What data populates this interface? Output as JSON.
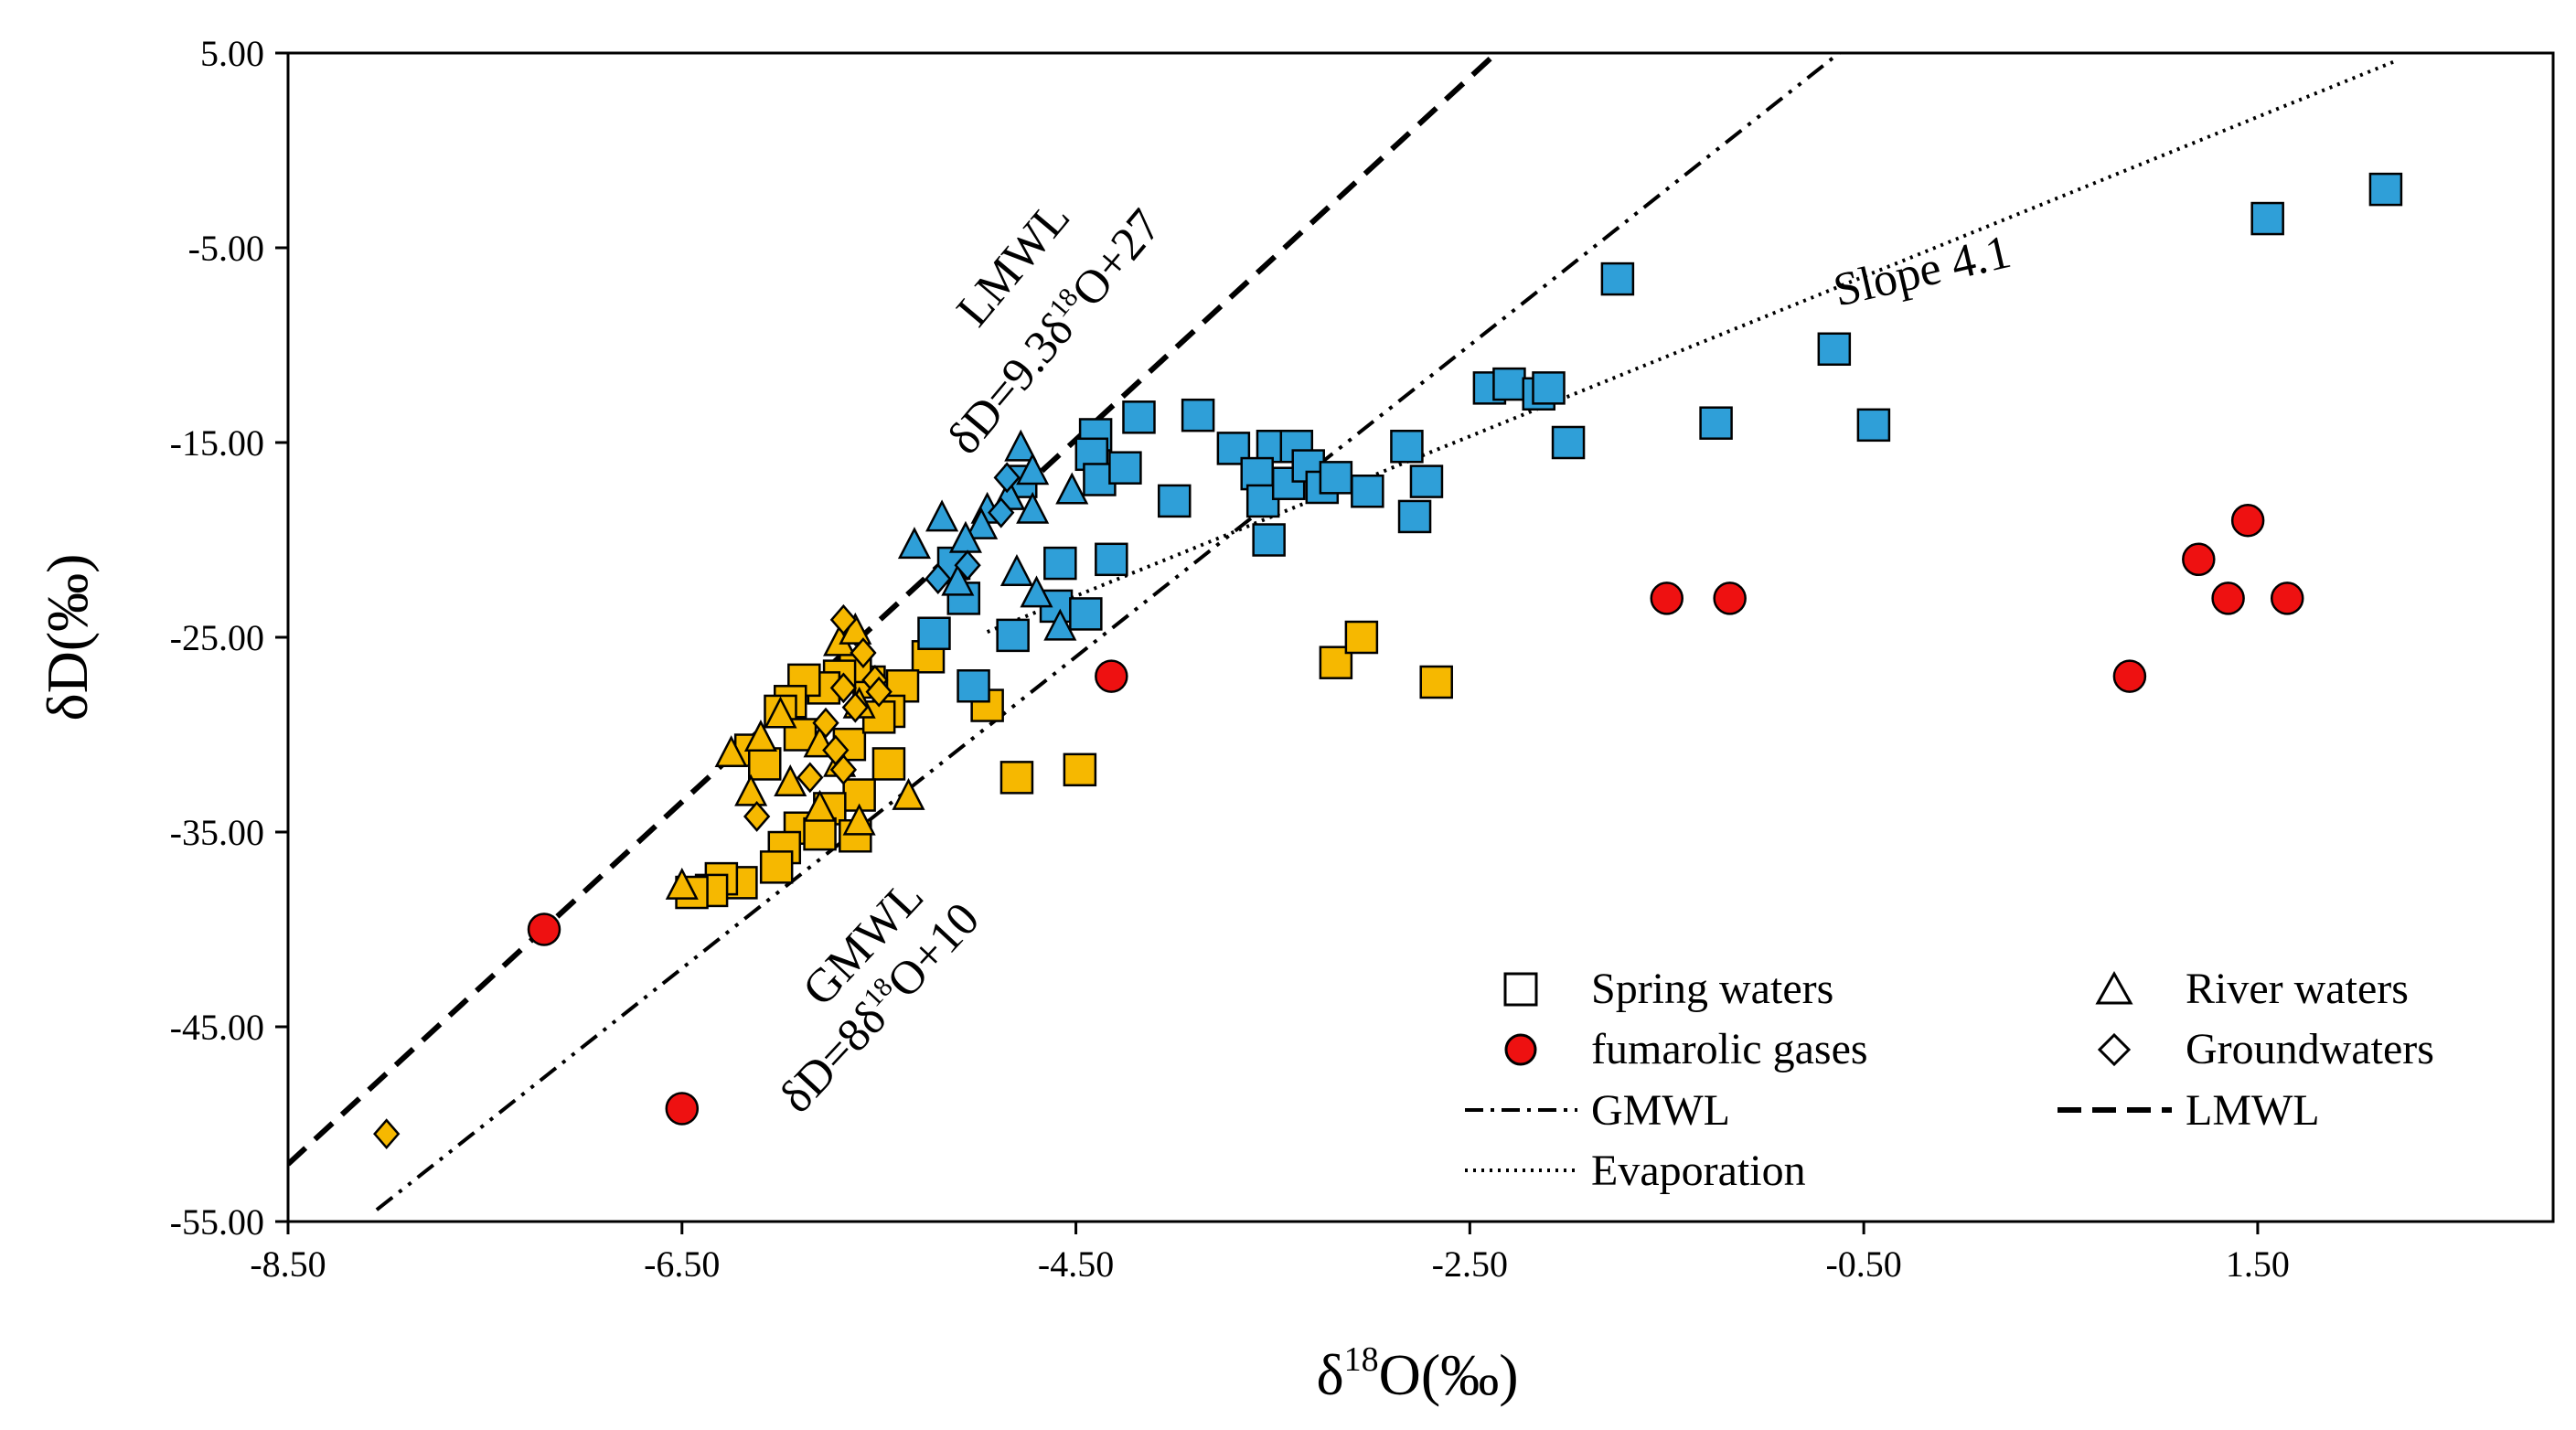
{
  "chart_data": {
    "type": "scatter",
    "title": "",
    "xlabel": "δ18O(‰)",
    "ylabel": "δD(‰)",
    "xlim": [
      -8.5,
      3.0
    ],
    "ylim": [
      -55,
      5
    ],
    "xticks": [
      "-8.50",
      "-6.50",
      "-4.50",
      "-2.50",
      "-0.50",
      "1.50"
    ],
    "yticks": [
      "5.00",
      "-5.00",
      "-15.00",
      "-25.00",
      "-35.00",
      "-45.00",
      "-55.00"
    ],
    "xtick_values": [
      -8.5,
      -6.5,
      -4.5,
      -2.5,
      -0.5,
      1.5
    ],
    "ytick_values": [
      5,
      -5,
      -15,
      -25,
      -35,
      -45,
      -55
    ],
    "colors": {
      "blue": "#2f9fd8",
      "yellow": "#f6b800",
      "red": "#ee1111",
      "line": "#000000"
    },
    "annotations": {
      "lmwl_name": "LMWL",
      "lmwl_eq": "δD=9.3δ18O+27",
      "gmwl_name": "GMWL",
      "gmwl_eq": "δD=8δ18O+10",
      "slope": "Slope 4.1"
    },
    "lines": [
      {
        "name": "LMWL",
        "style": "dashed",
        "slope": 9.3,
        "intercept": 27,
        "x_range": [
          -8.5,
          -2.38
        ]
      },
      {
        "name": "GMWL",
        "style": "dashdotdot",
        "slope": 8,
        "intercept": 10,
        "x_range": [
          -8.05,
          -0.55
        ]
      },
      {
        "name": "Evaporation",
        "style": "dotted",
        "slope": 4.1,
        "intercept": -4.43,
        "x_range": [
          -4.95,
          2.2
        ]
      }
    ],
    "legend": {
      "placement": "bottom-right",
      "items": [
        {
          "label": "Spring waters",
          "symbol": "square"
        },
        {
          "label": "River waters",
          "symbol": "triangle"
        },
        {
          "label": "fumarolic gases",
          "symbol": "circle"
        },
        {
          "label": "Groundwaters",
          "symbol": "diamond"
        },
        {
          "label": "GMWL",
          "symbol": "dashdot"
        },
        {
          "label": "LMWL",
          "symbol": "dashed"
        },
        {
          "label": "Evaporation",
          "symbol": "dotted"
        }
      ]
    },
    "series": [
      {
        "name": "Spring waters (blue)",
        "marker": "square",
        "color": "blue",
        "points": [
          [
            2.15,
            -2
          ],
          [
            1.55,
            -3.5
          ],
          [
            -1.75,
            -6.6
          ],
          [
            -0.65,
            -10.2
          ],
          [
            -2.4,
            -12.2
          ],
          [
            -2.3,
            -12
          ],
          [
            -2.15,
            -12.5
          ],
          [
            -2.1,
            -12.2
          ],
          [
            -2.0,
            -15
          ],
          [
            -1.25,
            -14
          ],
          [
            -0.45,
            -14.1
          ],
          [
            -4.4,
            -14.6
          ],
          [
            -4.42,
            -15.6
          ],
          [
            -4.38,
            -16.9
          ],
          [
            -4.25,
            -16.3
          ],
          [
            -4.18,
            -13.7
          ],
          [
            -3.88,
            -13.6
          ],
          [
            -3.7,
            -15.3
          ],
          [
            -3.5,
            -15.2
          ],
          [
            -3.58,
            -16.6
          ],
          [
            -3.55,
            -18
          ],
          [
            -3.42,
            -17.1
          ],
          [
            -3.38,
            -15.2
          ],
          [
            -3.32,
            -16.2
          ],
          [
            -3.25,
            -17.3
          ],
          [
            -3.18,
            -16.8
          ],
          [
            -3.02,
            -17.5
          ],
          [
            -2.82,
            -15.2
          ],
          [
            -2.72,
            -17
          ],
          [
            -2.78,
            -18.8
          ],
          [
            -3.52,
            -20
          ],
          [
            -4.0,
            -18
          ],
          [
            -4.58,
            -21.2
          ],
          [
            -4.32,
            -21
          ],
          [
            -4.6,
            -23.4
          ],
          [
            -4.45,
            -23.8
          ],
          [
            -4.82,
            -24.9
          ],
          [
            -5.12,
            -21.2
          ],
          [
            -5.07,
            -23
          ],
          [
            -5.22,
            -24.8
          ],
          [
            -4.78,
            -17
          ],
          [
            -5.02,
            -27.5
          ]
        ]
      },
      {
        "name": "Spring waters (yellow)",
        "marker": "square",
        "color": "yellow",
        "points": [
          [
            -5.25,
            -26
          ],
          [
            -4.95,
            -28.5
          ],
          [
            -4.8,
            -32.2
          ],
          [
            -4.48,
            -31.8
          ],
          [
            -3.18,
            -26.3
          ],
          [
            -3.05,
            -25
          ],
          [
            -2.67,
            -27.3
          ],
          [
            -5.38,
            -27.5
          ],
          [
            -5.45,
            -28.8
          ],
          [
            -5.55,
            -27.3
          ],
          [
            -5.62,
            -26.5
          ],
          [
            -5.7,
            -27
          ],
          [
            -5.78,
            -27.6
          ],
          [
            -5.88,
            -27.2
          ],
          [
            -5.95,
            -28.3
          ],
          [
            -6.0,
            -28.8
          ],
          [
            -6.15,
            -30.8
          ],
          [
            -6.08,
            -31.5
          ],
          [
            -5.9,
            -30
          ],
          [
            -5.65,
            -30.5
          ],
          [
            -5.5,
            -29.1
          ],
          [
            -5.45,
            -31.5
          ],
          [
            -5.6,
            -33.1
          ],
          [
            -5.75,
            -33.8
          ],
          [
            -5.9,
            -34.8
          ],
          [
            -5.98,
            -35.8
          ],
          [
            -6.02,
            -36.8
          ],
          [
            -6.2,
            -37.6
          ],
          [
            -6.3,
            -37.4
          ],
          [
            -6.35,
            -38
          ],
          [
            -6.45,
            -38.1
          ],
          [
            -5.8,
            -35.1
          ],
          [
            -5.62,
            -35.2
          ]
        ]
      },
      {
        "name": "River waters (blue)",
        "marker": "triangle",
        "color": "blue",
        "points": [
          [
            -4.78,
            -15.3
          ],
          [
            -4.72,
            -16.5
          ],
          [
            -4.84,
            -17.8
          ],
          [
            -4.95,
            -18.5
          ],
          [
            -4.98,
            -19.3
          ],
          [
            -5.18,
            -18.9
          ],
          [
            -5.06,
            -20
          ],
          [
            -5.32,
            -20.3
          ],
          [
            -4.52,
            -17.5
          ],
          [
            -4.72,
            -18.5
          ],
          [
            -5.1,
            -22.2
          ],
          [
            -4.8,
            -21.7
          ],
          [
            -4.7,
            -22.8
          ],
          [
            -4.58,
            -24.5
          ]
        ]
      },
      {
        "name": "River waters (yellow)",
        "marker": "triangle",
        "color": "yellow",
        "points": [
          [
            -6.5,
            -37.8
          ],
          [
            -6.25,
            -31
          ],
          [
            -6.15,
            -33
          ],
          [
            -6.0,
            -29
          ],
          [
            -6.1,
            -30.2
          ],
          [
            -5.95,
            -32.5
          ],
          [
            -5.8,
            -33.8
          ],
          [
            -5.7,
            -31.5
          ],
          [
            -5.6,
            -34.5
          ],
          [
            -5.8,
            -30.5
          ],
          [
            -5.35,
            -33.2
          ],
          [
            -5.7,
            -25.3
          ],
          [
            -5.62,
            -24.7
          ],
          [
            -5.6,
            -28.5
          ]
        ]
      },
      {
        "name": "Groundwaters (yellow)",
        "marker": "diamond",
        "color": "yellow",
        "points": [
          [
            -8.0,
            -50.5
          ],
          [
            -6.12,
            -34.2
          ],
          [
            -5.68,
            -24.1
          ],
          [
            -5.58,
            -25.8
          ],
          [
            -5.52,
            -27.2
          ],
          [
            -5.62,
            -28.6
          ],
          [
            -5.77,
            -29.4
          ],
          [
            -5.68,
            -31.8
          ],
          [
            -5.85,
            -32.2
          ],
          [
            -5.72,
            -30.8
          ],
          [
            -5.68,
            -27.6
          ],
          [
            -5.5,
            -27.8
          ]
        ]
      },
      {
        "name": "Groundwaters (blue)",
        "marker": "diamond",
        "color": "blue",
        "points": [
          [
            -5.2,
            -22
          ],
          [
            -5.05,
            -21.3
          ],
          [
            -4.88,
            -18.6
          ],
          [
            -4.85,
            -16.8
          ]
        ]
      },
      {
        "name": "fumarolic gases",
        "marker": "circle",
        "color": "red",
        "points": [
          [
            -7.2,
            -40
          ],
          [
            -6.5,
            -49.2
          ],
          [
            -4.32,
            -27
          ],
          [
            -1.5,
            -23
          ],
          [
            -1.18,
            -23
          ],
          [
            0.85,
            -27
          ],
          [
            1.2,
            -21
          ],
          [
            1.35,
            -23
          ],
          [
            1.45,
            -19
          ],
          [
            1.65,
            -23
          ]
        ]
      }
    ]
  }
}
